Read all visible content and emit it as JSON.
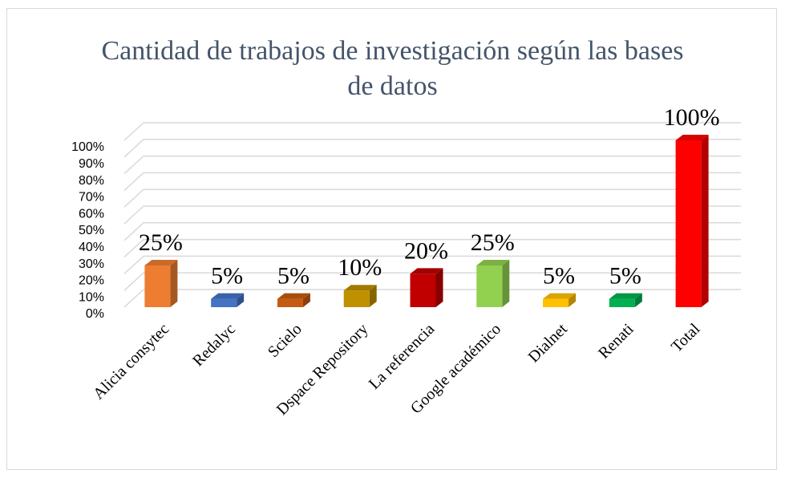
{
  "chart_data": {
    "type": "bar3d",
    "title": "Cantidad de trabajos de investigación según las bases de datos",
    "categories": [
      "Alicia consytec",
      "Redalyc",
      "Scielo",
      "Dspace Repository",
      "La referencia",
      "Google académico",
      "Dialnet",
      "Renati",
      "Total"
    ],
    "values": [
      25,
      5,
      5,
      10,
      20,
      25,
      5,
      5,
      100
    ],
    "value_labels": [
      "25%",
      "5%",
      "5%",
      "10%",
      "20%",
      "25%",
      "5%",
      "5%",
      "100%"
    ],
    "colors": [
      "#ED7D31",
      "#4472C4",
      "#C55A11",
      "#BF9000",
      "#C00000",
      "#92D050",
      "#FFC000",
      "#00B050",
      "#FF0000"
    ],
    "ylim": [
      0,
      100
    ],
    "yticks": [
      {
        "value": 0,
        "label": "0%"
      },
      {
        "value": 10,
        "label": "10%"
      },
      {
        "value": 20,
        "label": "20%"
      },
      {
        "value": 30,
        "label": "30%"
      },
      {
        "value": 40,
        "label": "40%"
      },
      {
        "value": 50,
        "label": "50%"
      },
      {
        "value": 60,
        "label": "60%"
      },
      {
        "value": 70,
        "label": "70%"
      },
      {
        "value": 80,
        "label": "80%"
      },
      {
        "value": 90,
        "label": "90%"
      },
      {
        "value": 100,
        "label": "100%"
      }
    ],
    "grid": true
  }
}
